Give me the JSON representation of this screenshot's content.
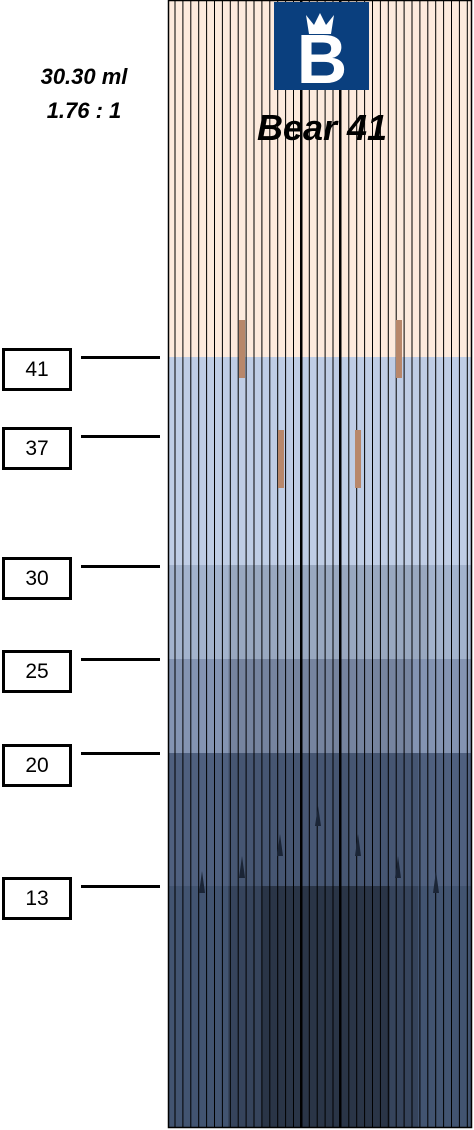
{
  "info": {
    "volume": "30.30 ml",
    "ratio": "1.76 : 1"
  },
  "brand": {
    "logo_letter": "B",
    "name": "Bear 41",
    "logo_color": "#0a3f7e"
  },
  "colors": {
    "top_band": "#fdeadd",
    "stripe_line": "#000000",
    "accent_marks": "#b8876a"
  },
  "markers": [
    {
      "label": "41",
      "value": 41
    },
    {
      "label": "37",
      "value": 37
    },
    {
      "label": "30",
      "value": 30
    },
    {
      "label": "25",
      "value": 25
    },
    {
      "label": "20",
      "value": 20
    },
    {
      "label": "13",
      "value": 13
    }
  ]
}
